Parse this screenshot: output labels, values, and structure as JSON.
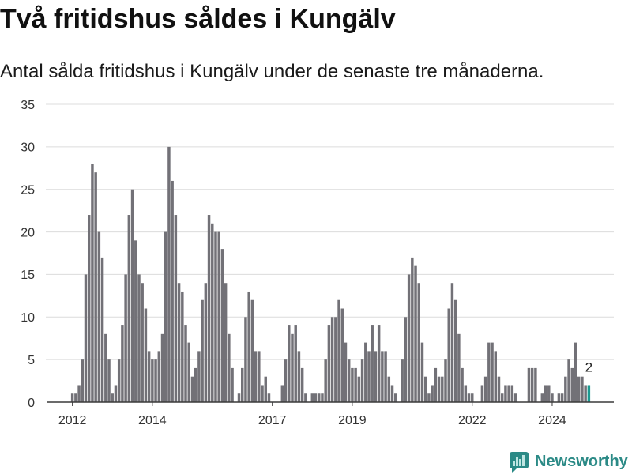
{
  "chart_data": {
    "type": "bar",
    "title": "Två fritidshus såldes i Kungälv",
    "subtitle": "Antal sålda fritidshus i Kungälv under de senaste tre månaderna.",
    "ylim": [
      0,
      35
    ],
    "xlim": [
      "2011-06",
      "2025-07"
    ],
    "y_ticks": [
      0,
      5,
      10,
      15,
      20,
      25,
      30,
      35
    ],
    "x_ticks": [
      "2012",
      "2014",
      "2017",
      "2019",
      "2022",
      "2024"
    ],
    "grid": true,
    "colors": {
      "bar": "#727177",
      "highlight": "#1b9a91",
      "grid": "#dcdcdc",
      "axis": "#3a3a3a"
    },
    "categories": [
      "2012-01",
      "2012-02",
      "2012-03",
      "2012-04",
      "2012-05",
      "2012-06",
      "2012-07",
      "2012-08",
      "2012-09",
      "2012-10",
      "2012-11",
      "2012-12",
      "2013-01",
      "2013-02",
      "2013-03",
      "2013-04",
      "2013-05",
      "2013-06",
      "2013-07",
      "2013-08",
      "2013-09",
      "2013-10",
      "2013-11",
      "2013-12",
      "2014-01",
      "2014-02",
      "2014-03",
      "2014-04",
      "2014-05",
      "2014-06",
      "2014-07",
      "2014-08",
      "2014-09",
      "2014-10",
      "2014-11",
      "2014-12",
      "2015-01",
      "2015-02",
      "2015-03",
      "2015-04",
      "2015-05",
      "2015-06",
      "2015-07",
      "2015-08",
      "2015-09",
      "2015-10",
      "2015-11",
      "2015-12",
      "2016-01",
      "2016-02",
      "2016-03",
      "2016-04",
      "2016-05",
      "2016-06",
      "2016-07",
      "2016-08",
      "2016-09",
      "2016-10",
      "2016-11",
      "2016-12",
      "2017-01",
      "2017-02",
      "2017-03",
      "2017-04",
      "2017-05",
      "2017-06",
      "2017-07",
      "2017-08",
      "2017-09",
      "2017-10",
      "2017-11",
      "2017-12",
      "2018-01",
      "2018-02",
      "2018-03",
      "2018-04",
      "2018-05",
      "2018-06",
      "2018-07",
      "2018-08",
      "2018-09",
      "2018-10",
      "2018-11",
      "2018-12",
      "2019-01",
      "2019-02",
      "2019-03",
      "2019-04",
      "2019-05",
      "2019-06",
      "2019-07",
      "2019-08",
      "2019-09",
      "2019-10",
      "2019-11",
      "2019-12",
      "2020-01",
      "2020-02",
      "2020-03",
      "2020-04",
      "2020-05",
      "2020-06",
      "2020-07",
      "2020-08",
      "2020-09",
      "2020-10",
      "2020-11",
      "2020-12",
      "2021-01",
      "2021-02",
      "2021-03",
      "2021-04",
      "2021-05",
      "2021-06",
      "2021-07",
      "2021-08",
      "2021-09",
      "2021-10",
      "2021-11",
      "2021-12",
      "2022-01",
      "2022-02",
      "2022-03",
      "2022-04",
      "2022-05",
      "2022-06",
      "2022-07",
      "2022-08",
      "2022-09",
      "2022-10",
      "2022-11",
      "2022-12",
      "2023-01",
      "2023-02",
      "2023-03",
      "2023-04",
      "2023-05",
      "2023-06",
      "2023-07",
      "2023-08",
      "2023-09",
      "2023-10",
      "2023-11",
      "2023-12",
      "2024-01",
      "2024-02",
      "2024-03",
      "2024-04",
      "2024-05",
      "2024-06",
      "2024-07",
      "2024-08",
      "2024-09",
      "2024-10",
      "2024-11",
      "2024-12"
    ],
    "values": [
      1,
      1,
      2,
      5,
      15,
      22,
      28,
      27,
      20,
      17,
      8,
      5,
      1,
      2,
      5,
      9,
      15,
      22,
      25,
      19,
      15,
      14,
      11,
      6,
      5,
      5,
      6,
      8,
      20,
      30,
      26,
      22,
      14,
      13,
      9,
      7,
      3,
      4,
      6,
      12,
      14,
      22,
      21,
      20,
      20,
      18,
      14,
      8,
      4,
      0,
      1,
      4,
      10,
      13,
      12,
      6,
      6,
      2,
      3,
      1,
      0,
      0,
      0,
      2,
      5,
      9,
      8,
      9,
      6,
      4,
      1,
      0,
      1,
      1,
      1,
      1,
      5,
      9,
      10,
      10,
      12,
      11,
      7,
      5,
      4,
      4,
      3,
      5,
      7,
      6,
      9,
      6,
      9,
      6,
      6,
      3,
      2,
      1,
      0,
      5,
      10,
      15,
      17,
      16,
      14,
      7,
      3,
      1,
      2,
      4,
      3,
      3,
      5,
      11,
      14,
      12,
      8,
      4,
      2,
      1,
      1,
      0,
      0,
      2,
      3,
      7,
      7,
      6,
      3,
      1,
      2,
      2,
      2,
      1,
      0,
      0,
      0,
      4,
      4,
      4,
      0,
      1,
      2,
      2,
      1,
      0,
      1,
      1,
      3,
      5,
      4,
      7,
      3,
      3,
      2,
      2
    ],
    "highlight": {
      "x": "2024-12",
      "label": "2"
    }
  },
  "branding": {
    "logo_text": "Newsworthy",
    "icon": "newsworthy-bar-chart-bubble-icon",
    "color": "#2b8a86",
    "icon_bar_color": "#bfe6e2"
  }
}
